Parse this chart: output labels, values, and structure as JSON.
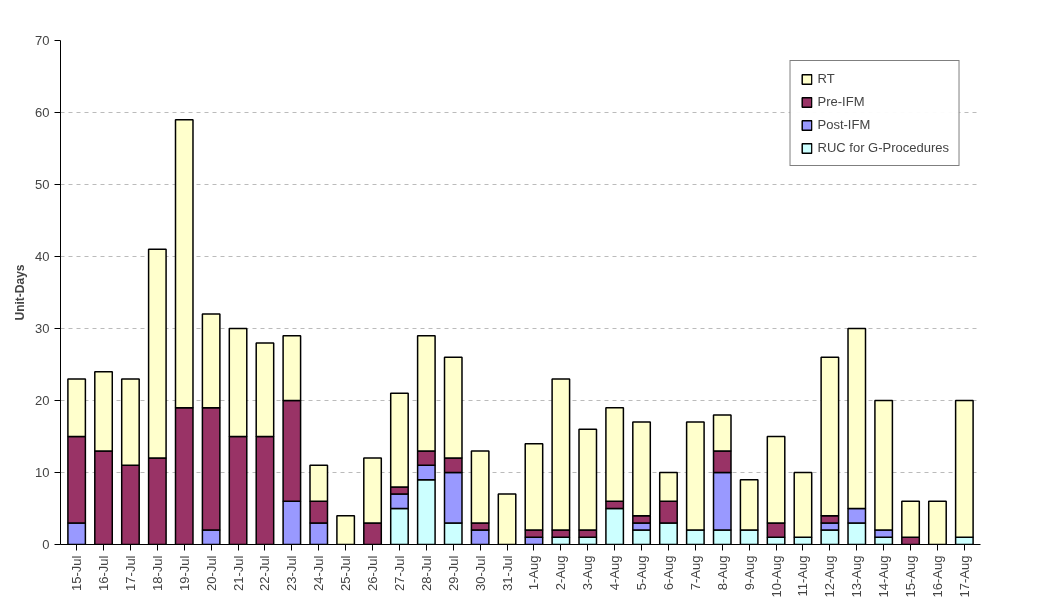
{
  "chart_data": {
    "type": "bar",
    "stacked": true,
    "ylabel": "Unit-Days",
    "categories": [
      "15-Jul",
      "16-Jul",
      "17-Jul",
      "18-Jul",
      "19-Jul",
      "20-Jul",
      "21-Jul",
      "22-Jul",
      "23-Jul",
      "24-Jul",
      "25-Jul",
      "26-Jul",
      "27-Jul",
      "28-Jul",
      "29-Jul",
      "30-Jul",
      "31-Jul",
      "1-Aug",
      "2-Aug",
      "3-Aug",
      "4-Aug",
      "5-Aug",
      "6-Aug",
      "7-Aug",
      "8-Aug",
      "9-Aug",
      "10-Aug",
      "11-Aug",
      "12-Aug",
      "13-Aug",
      "14-Aug",
      "15-Aug",
      "16-Aug",
      "17-Aug"
    ],
    "series": [
      {
        "name": "RUC for G-Procedures",
        "color": "#ccffff",
        "values": [
          0,
          0,
          0,
          0,
          0,
          0,
          0,
          0,
          0,
          0,
          0,
          0,
          5,
          9,
          3,
          0,
          0,
          0,
          1,
          1,
          5,
          2,
          3,
          2,
          2,
          2,
          1,
          1,
          2,
          3,
          1,
          0,
          0,
          1
        ]
      },
      {
        "name": "Post-IFM",
        "color": "#9999ff",
        "values": [
          3,
          0,
          0,
          0,
          0,
          2,
          0,
          0,
          6,
          3,
          0,
          0,
          2,
          2,
          7,
          2,
          0,
          1,
          0,
          0,
          0,
          1,
          0,
          0,
          8,
          0,
          0,
          0,
          1,
          2,
          1,
          0,
          0,
          0
        ]
      },
      {
        "name": "Pre-IFM",
        "color": "#993366",
        "values": [
          12,
          13,
          11,
          12,
          19,
          17,
          15,
          15,
          14,
          3,
          0,
          3,
          1,
          2,
          2,
          1,
          0,
          1,
          1,
          1,
          1,
          1,
          3,
          0,
          3,
          0,
          2,
          0,
          1,
          0,
          0,
          1,
          0,
          0
        ]
      },
      {
        "name": "RT",
        "color": "#ffffcc",
        "values": [
          8,
          11,
          12,
          29,
          40,
          13,
          15,
          13,
          9,
          5,
          4,
          9,
          13,
          16,
          14,
          10,
          7,
          12,
          21,
          14,
          13,
          13,
          4,
          15,
          5,
          7,
          12,
          9,
          22,
          25,
          18,
          5,
          6,
          19
        ]
      }
    ],
    "ylim": [
      0,
      70
    ],
    "yticks": [
      0,
      10,
      20,
      30,
      40,
      50,
      60,
      70
    ],
    "grid": "y",
    "legend": "top right"
  }
}
